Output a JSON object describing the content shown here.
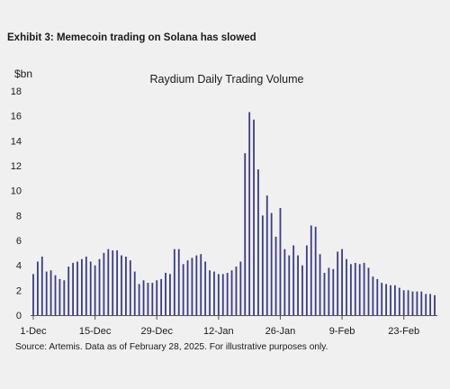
{
  "exhibit_title": "Exhibit 3: Memecoin trading on Solana has slowed",
  "source_note": "Source: Artemis. Data as of February 28, 2025. For illustrative purposes only.",
  "colors": {
    "bar": "#3a3b8c",
    "background": "#f0f0f0",
    "axis": "#555555"
  },
  "chart_data": {
    "type": "bar",
    "title": "Raydium Daily Trading Volume",
    "ylabel": "$bn",
    "xlabel": "",
    "ylim": [
      0,
      18
    ],
    "yticks": [
      0,
      2,
      4,
      6,
      8,
      10,
      12,
      14,
      16,
      18
    ],
    "xtick_labels": [
      {
        "label": "1-Dec",
        "index": 0
      },
      {
        "label": "15-Dec",
        "index": 14
      },
      {
        "label": "29-Dec",
        "index": 28
      },
      {
        "label": "12-Jan",
        "index": 42
      },
      {
        "label": "26-Jan",
        "index": 56
      },
      {
        "label": "9-Feb",
        "index": 70
      },
      {
        "label": "23-Feb",
        "index": 84
      }
    ],
    "start_date": "2024-12-01",
    "grid": false,
    "legend": "none",
    "values": [
      3.3,
      4.3,
      4.7,
      3.5,
      3.6,
      3.2,
      2.9,
      2.8,
      3.9,
      4.2,
      4.3,
      4.5,
      4.7,
      4.3,
      4.0,
      4.5,
      5.0,
      5.3,
      5.2,
      5.2,
      4.8,
      4.7,
      4.4,
      3.5,
      2.5,
      2.8,
      2.6,
      2.6,
      2.8,
      2.9,
      3.4,
      3.3,
      5.3,
      5.3,
      4.1,
      4.4,
      4.6,
      4.8,
      4.9,
      4.3,
      3.6,
      3.5,
      3.3,
      3.3,
      3.4,
      3.6,
      3.9,
      4.3,
      13.0,
      16.3,
      15.7,
      11.7,
      8.0,
      9.6,
      8.2,
      6.3,
      8.6,
      5.3,
      4.8,
      5.6,
      4.8,
      4.0,
      5.6,
      7.2,
      7.1,
      4.9,
      3.4,
      3.8,
      3.7,
      5.1,
      5.3,
      4.5,
      4.1,
      4.2,
      4.1,
      4.2,
      3.8,
      3.1,
      2.9,
      2.6,
      2.5,
      2.4,
      2.4,
      2.2,
      2.0,
      2.0,
      1.9,
      1.9,
      1.9,
      1.7,
      1.7,
      1.6
    ]
  }
}
